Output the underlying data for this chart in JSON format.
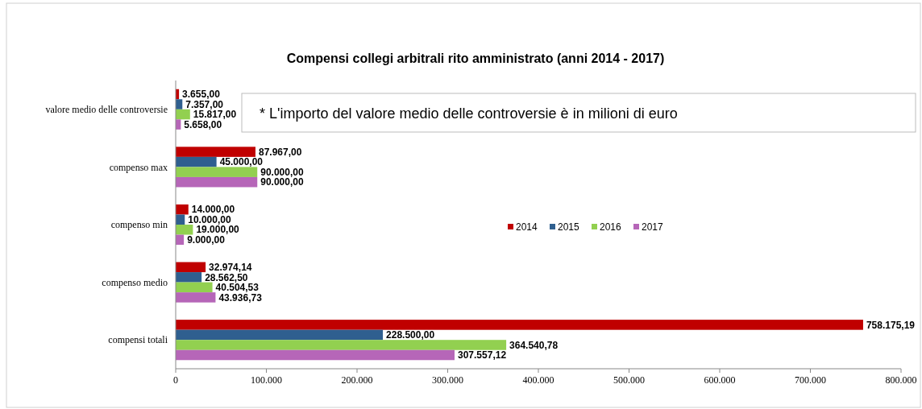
{
  "chart_data": {
    "type": "bar",
    "orientation": "horizontal",
    "title": "Compensi collegi arbitrali rito amministrato (anni 2014 - 2017)",
    "categories": [
      "valore medio delle controversie",
      "compenso max",
      "compenso min",
      "compenso medio",
      "compensi totali"
    ],
    "series": [
      {
        "name": "2014",
        "color": "#c00000",
        "values": [
          3655,
          87967,
          14000,
          32974.14,
          758175.19
        ],
        "value_labels": [
          "3.655,00",
          "87.967,00",
          "14.000,00",
          "32.974,14",
          "758.175,19"
        ]
      },
      {
        "name": "2015",
        "color": "#2f5f8f",
        "values": [
          7357,
          45000,
          10000,
          28562.5,
          228500
        ],
        "value_labels": [
          "7.357,00",
          "45.000,00",
          "10.000,00",
          "28.562,50",
          "228.500,00"
        ]
      },
      {
        "name": "2016",
        "color": "#92d050",
        "values": [
          15817,
          90000,
          19000,
          40504.53,
          364540.78
        ],
        "value_labels": [
          "15.817,00",
          "90.000,00",
          "19.000,00",
          "40.504,53",
          "364.540,78"
        ]
      },
      {
        "name": "2017",
        "color": "#b666b8",
        "values": [
          5658,
          90000,
          9000,
          43936.73,
          307557.12
        ],
        "value_labels": [
          "5.658,00",
          "90.000,00",
          "9.000,00",
          "43.936,73",
          "307.557,12"
        ]
      }
    ],
    "xlim": [
      0,
      800000
    ],
    "xticks": [
      0,
      {
        "value": 100000,
        "label": "100.000"
      },
      {
        "value": 200000,
        "label": "200.000"
      },
      {
        "value": 300000,
        "label": "300.000"
      },
      {
        "value": 400000,
        "label": "400.000"
      },
      {
        "value": 500000,
        "label": "500.000"
      },
      {
        "value": 600000,
        "label": "600.000"
      },
      {
        "value": 700000,
        "label": "700.000"
      },
      {
        "value": 800000,
        "label": "800.000"
      }
    ],
    "legend": "right",
    "annotations": [
      "* L'importo del valore medio delle controversie è in milioni di euro"
    ]
  }
}
